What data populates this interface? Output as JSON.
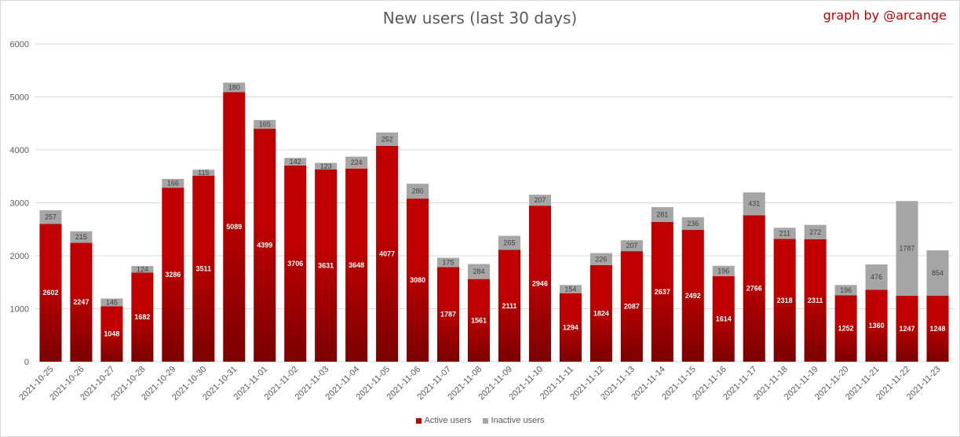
{
  "colors": {
    "active": "#c00000",
    "active_dark": "#7b0000",
    "inactive": "#a6a6a6",
    "grid": "#d9d9d9",
    "credit": "#c00000"
  },
  "chart_data": {
    "type": "bar",
    "stacked": true,
    "title": "New users (last 30 days)",
    "credit": "graph by @arcange",
    "categories": [
      "2021-10-25",
      "2021-10-26",
      "2021-10-27",
      "2021-10-28",
      "2021-10-29",
      "2021-10-30",
      "2021-10-31",
      "2021-11-01",
      "2021-11-02",
      "2021-11-03",
      "2021-11-04",
      "2021-11-05",
      "2021-11-06",
      "2021-11-07",
      "2021-11-08",
      "2021-11-09",
      "2021-11-10",
      "2021-11-11",
      "2021-11-12",
      "2021-11-13",
      "2021-11-14",
      "2021-11-15",
      "2021-11-16",
      "2021-11-17",
      "2021-11-18",
      "2021-11-19",
      "2021-11-20",
      "2021-11-21",
      "2021-11-22",
      "2021-11-23"
    ],
    "series": [
      {
        "name": "Active users",
        "values": [
          2602,
          2247,
          1048,
          1682,
          3286,
          3511,
          5089,
          4399,
          3706,
          3631,
          3648,
          4077,
          3080,
          1787,
          1561,
          2111,
          2946,
          1294,
          1824,
          2087,
          2637,
          2492,
          1614,
          2766,
          2318,
          2311,
          1252,
          1360,
          1247,
          1248
        ]
      },
      {
        "name": "Inactive users",
        "values": [
          257,
          215,
          145,
          124,
          166,
          115,
          180,
          165,
          142,
          123,
          224,
          252,
          280,
          175,
          284,
          265,
          207,
          154,
          226,
          207,
          281,
          236,
          196,
          431,
          211,
          272,
          196,
          476,
          1787,
          854
        ]
      }
    ],
    "ylim": [
      0,
      6000
    ],
    "yticks": [
      0,
      1000,
      2000,
      3000,
      4000,
      5000,
      6000
    ],
    "grid": true,
    "legend_position": "bottom"
  }
}
